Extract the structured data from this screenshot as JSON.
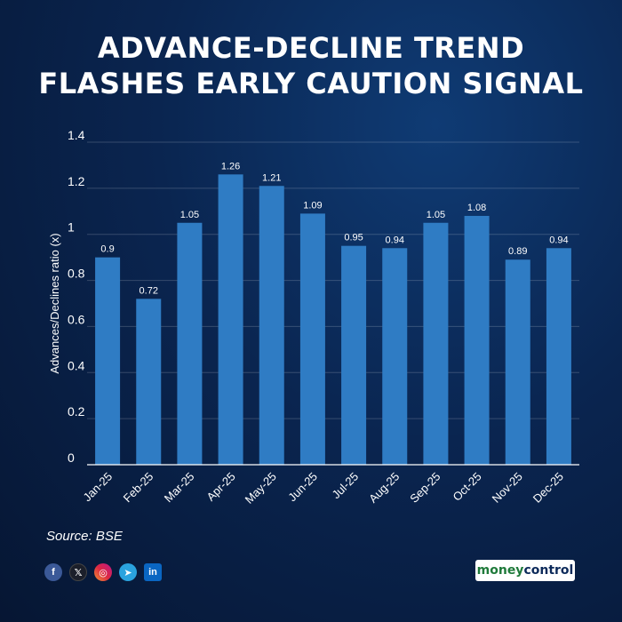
{
  "header": {
    "title_line1": "ADVANCE-DECLINE TREND",
    "title_line2": "FLASHES EARLY CAUTION SIGNAL"
  },
  "chart_data": {
    "type": "bar",
    "categories": [
      "Jan-25",
      "Feb-25",
      "Mar-25",
      "Apr-25",
      "May-25",
      "Jun-25",
      "Jul-25",
      "Aug-25",
      "Sep-25",
      "Oct-25",
      "Nov-25",
      "Dec-25"
    ],
    "values": [
      0.9,
      0.72,
      1.05,
      1.26,
      1.21,
      1.09,
      0.95,
      0.94,
      1.05,
      1.08,
      0.89,
      0.94
    ],
    "ylabel": "Advances/Declines ratio (x)",
    "ylim": [
      0,
      1.4
    ],
    "yticks": [
      "0",
      "0.2",
      "0.4",
      "0.6",
      "0.8",
      "1",
      "1.2",
      "1.4"
    ],
    "grid": true,
    "bar_color": "#2f7cc4"
  },
  "footer": {
    "source": "Source: BSE",
    "social": [
      "f",
      "𝕏",
      "◎",
      "➤",
      "in"
    ],
    "brand_part1": "money",
    "brand_part2": "control"
  },
  "icons": [
    "facebook-icon",
    "x-icon",
    "instagram-icon",
    "telegram-icon",
    "linkedin-icon"
  ]
}
